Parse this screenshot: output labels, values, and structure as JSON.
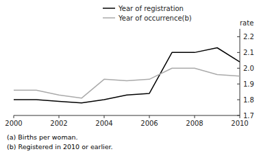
{
  "chart_data": {
    "type": "line",
    "x": [
      2000,
      2001,
      2002,
      2003,
      2004,
      2005,
      2006,
      2007,
      2008,
      2009,
      2010
    ],
    "series": [
      {
        "name": "Year of registration",
        "color": "#000000",
        "values": [
          1.8,
          1.8,
          1.79,
          1.78,
          1.8,
          1.83,
          1.84,
          2.1,
          2.1,
          2.13,
          2.04
        ]
      },
      {
        "name": "Year of occurrence(b)",
        "color": "#aaaaaa",
        "values": [
          1.86,
          1.86,
          1.83,
          1.81,
          1.93,
          1.92,
          1.93,
          2.0,
          2.0,
          1.96,
          1.95
        ]
      }
    ],
    "xlim": [
      2000,
      2010
    ],
    "ylim": [
      1.7,
      2.25
    ],
    "xticks": [
      2000,
      2002,
      2004,
      2006,
      2008,
      2010
    ],
    "yticks": [
      1.7,
      1.8,
      1.9,
      {
        "value": 2,
        "label": "2.0"
      },
      2.1,
      2.2
    ],
    "ylabel": "rate",
    "annotations": [
      "(a) Births per woman.",
      "(b) Registered in 2010 or earlier."
    ],
    "legend": "top",
    "grid": false
  }
}
